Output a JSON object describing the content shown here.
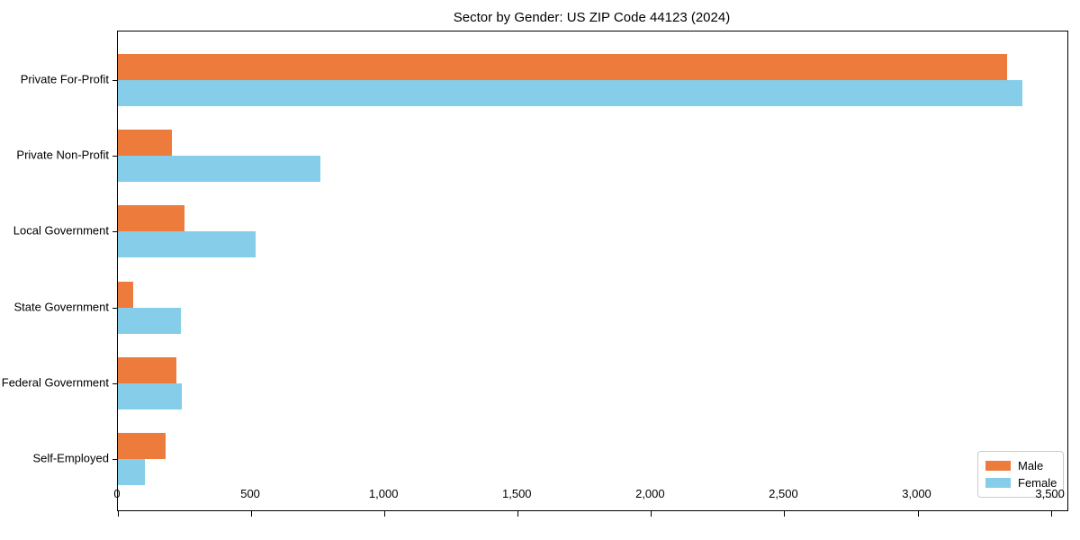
{
  "chart_data": {
    "type": "bar",
    "orientation": "horizontal",
    "title": "Sector by Gender: US ZIP Code 44123 (2024)",
    "categories": [
      "Private For-Profit",
      "Private Non-Profit",
      "Local Government",
      "State Government",
      "Federal Government",
      "Self-Employed"
    ],
    "series": [
      {
        "name": "Male",
        "color": "#ec7b3c",
        "values": [
          3337,
          204,
          249,
          57,
          218,
          179
        ]
      },
      {
        "name": "Female",
        "color": "#85cde8",
        "values": [
          3394,
          760,
          515,
          236,
          240,
          102
        ]
      }
    ],
    "xlabel": "",
    "ylabel": "",
    "xlim": [
      0,
      3562
    ],
    "xticks": [
      0,
      500,
      1000,
      1500,
      2000,
      2500,
      3000,
      3500
    ],
    "xtick_labels": [
      "0",
      "500",
      "1,000",
      "1,500",
      "2,000",
      "2,500",
      "3,000",
      "3,500"
    ],
    "grid": false,
    "legend_position": "lower right",
    "frame": "full-box",
    "bar_order_within_group": [
      "Male",
      "Female"
    ]
  }
}
